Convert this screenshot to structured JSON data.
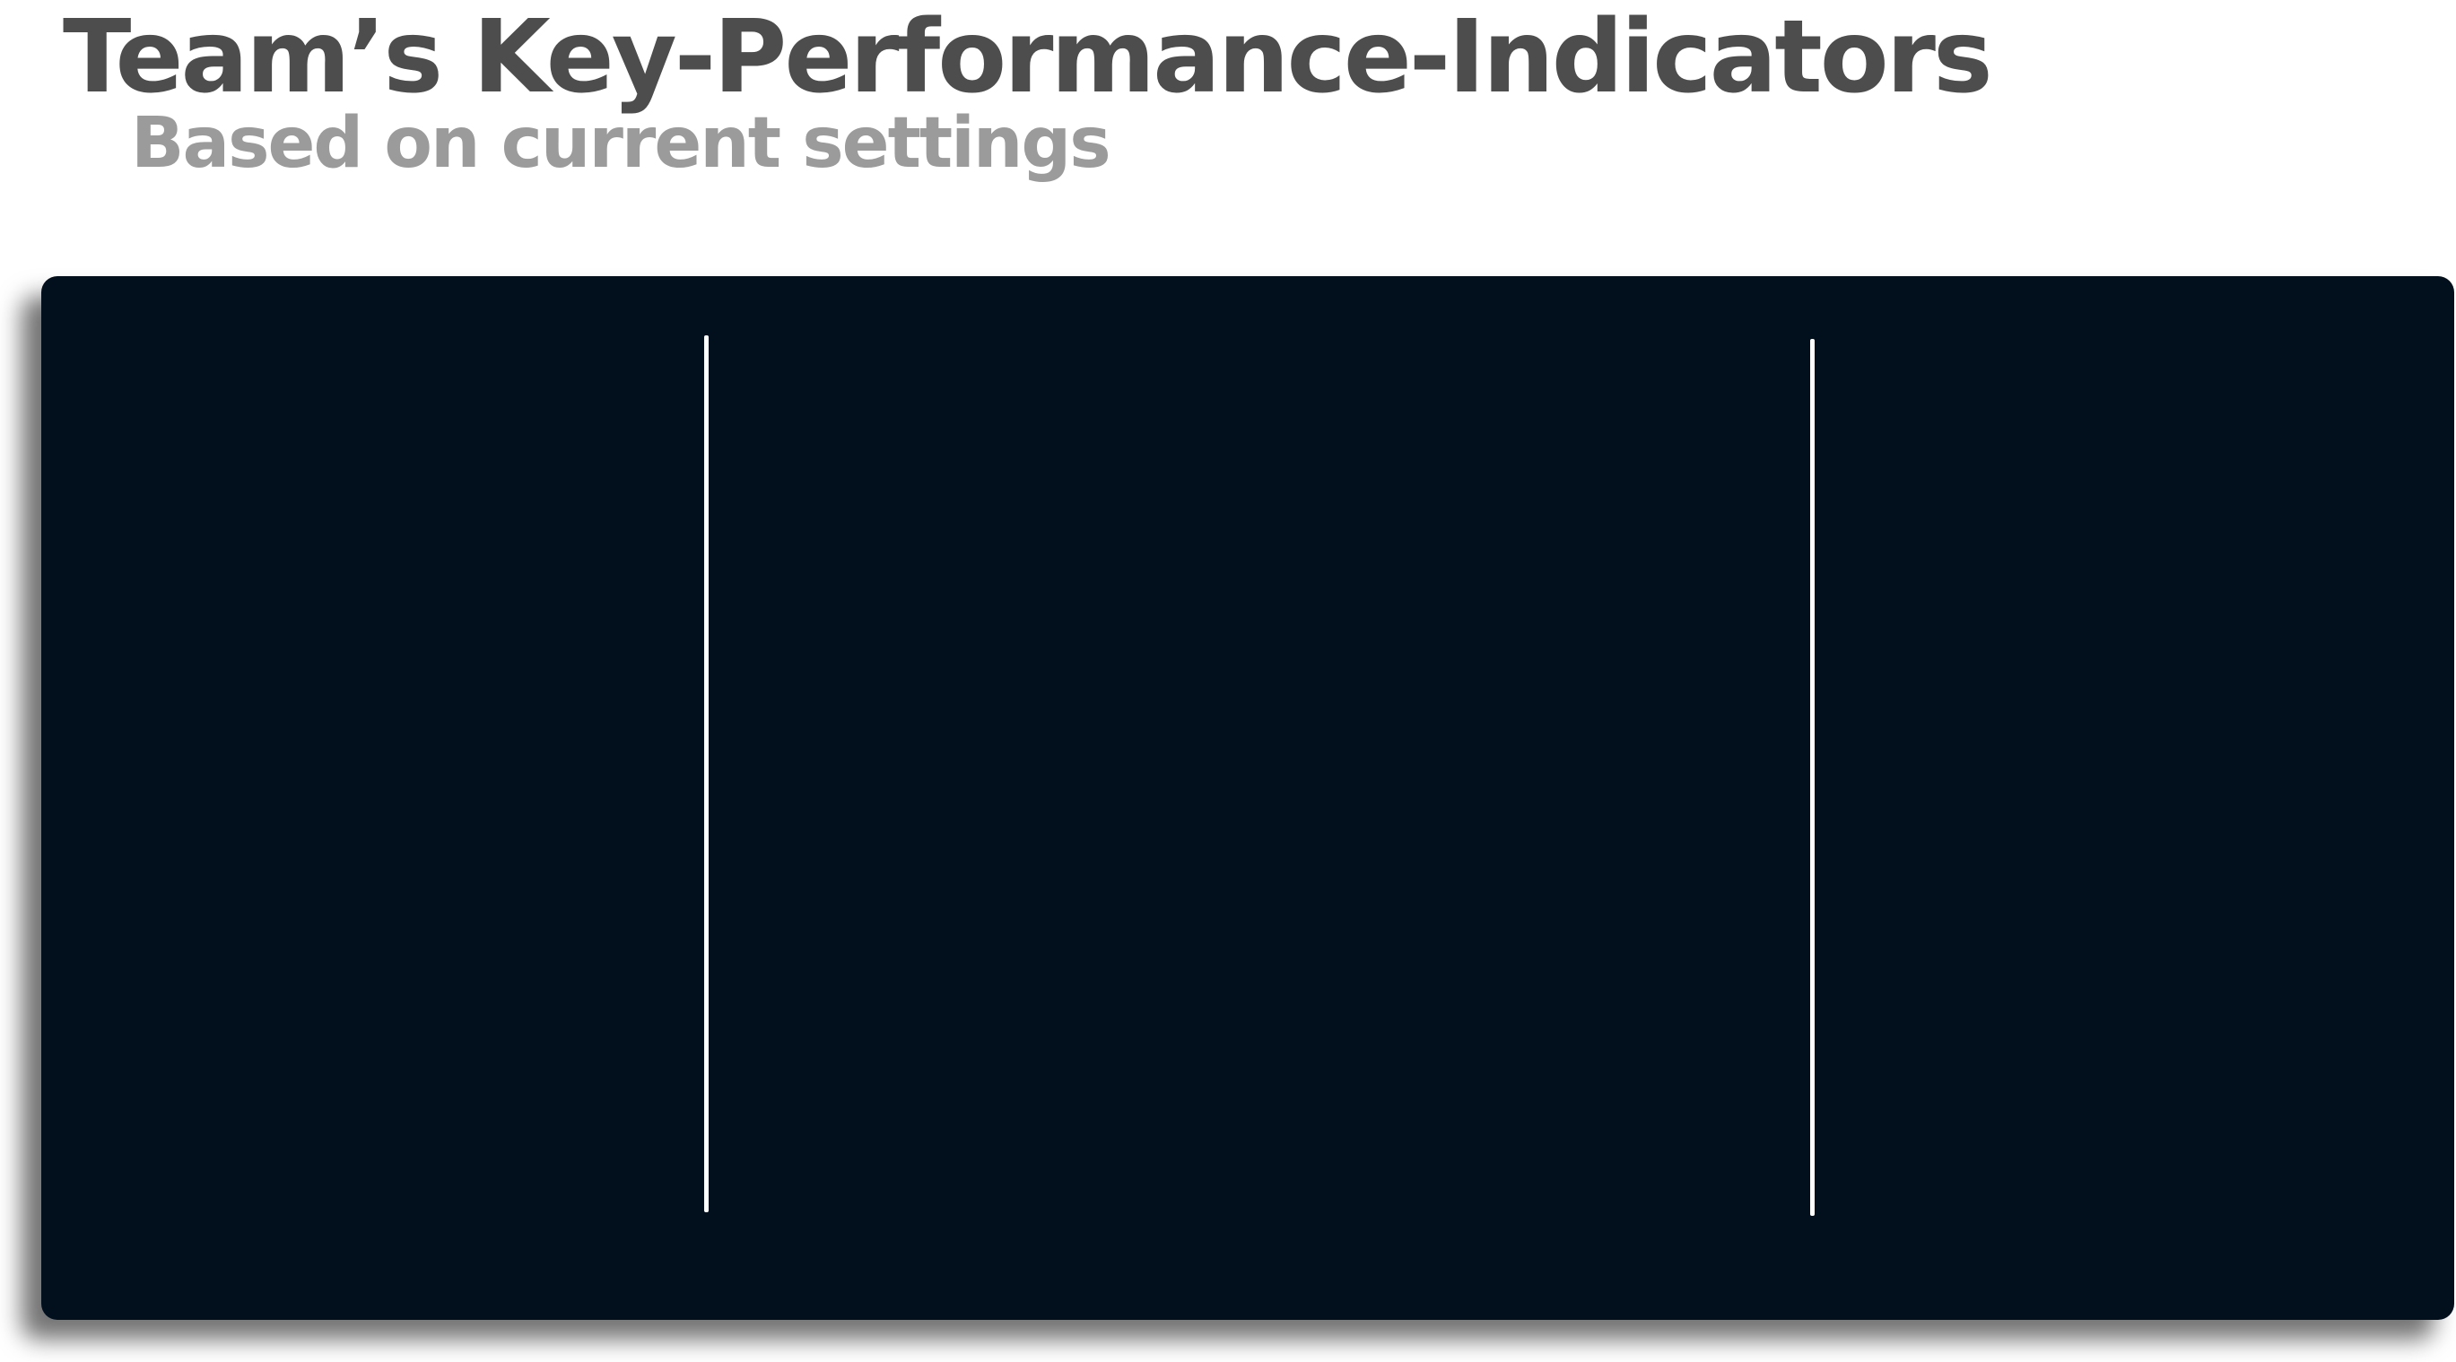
{
  "header": {
    "title": "Team’s Key-Performance-Indicators",
    "subtitle": "Based on current settings"
  },
  "panel": {
    "background_color": "#020f1c",
    "divider_color": "#ffffff",
    "section_count": 3
  },
  "colors": {
    "title": "#4d4d4d",
    "subtitle": "#9b9b9b"
  }
}
